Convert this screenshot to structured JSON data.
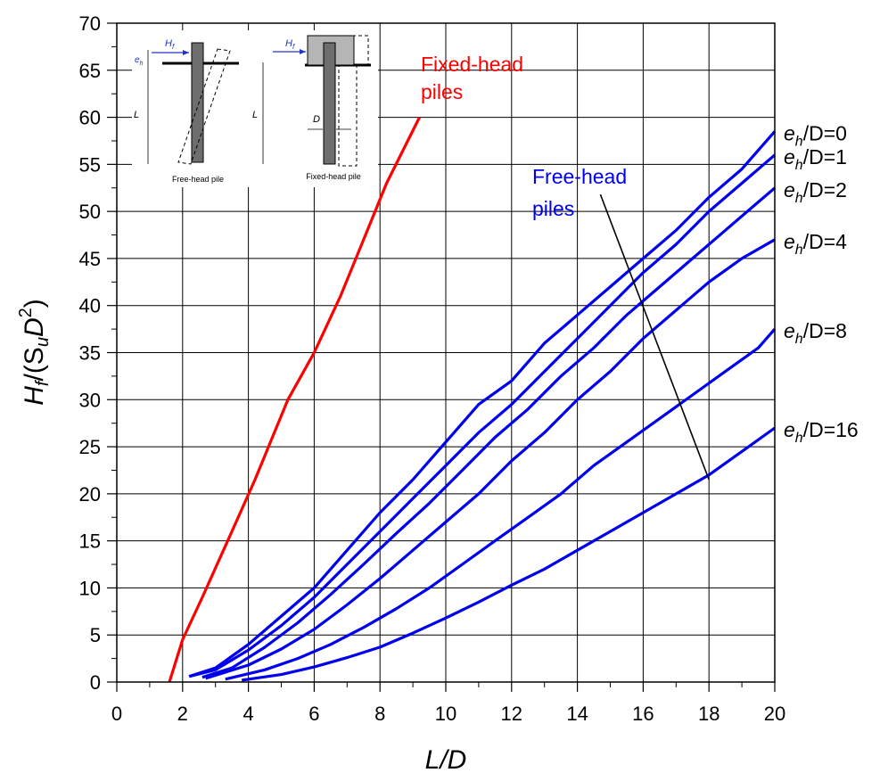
{
  "chart_data": {
    "type": "line",
    "xlabel": "L/D",
    "ylabel": {
      "main": "H",
      "sub1": "f",
      "mid": "/(S",
      "sub2": "u",
      "mid2": "D",
      "sup": "2",
      "end": ")"
    },
    "xlim": [
      0,
      20
    ],
    "ylim": [
      0,
      70
    ],
    "x_ticks": [
      "0",
      "2",
      "4",
      "6",
      "8",
      "10",
      "12",
      "14",
      "16",
      "18",
      "20"
    ],
    "y_ticks": [
      "0",
      "5",
      "10",
      "15",
      "20",
      "25",
      "30",
      "35",
      "40",
      "45",
      "50",
      "55",
      "60",
      "65",
      "70"
    ],
    "grid": true,
    "colors": {
      "fixed": "#ff0000",
      "free": "#0000ee",
      "pointer": "#000000"
    },
    "annotations": {
      "fixed_label": [
        "Fixed-head",
        "piles"
      ],
      "free_label": [
        "Free-head",
        "piles"
      ]
    },
    "fixed_series": {
      "points": [
        [
          1.6,
          0
        ],
        [
          2,
          4.5
        ],
        [
          2.6,
          9
        ],
        [
          3.5,
          16
        ],
        [
          4.2,
          21.5
        ],
        [
          5.2,
          30
        ],
        [
          6,
          35
        ],
        [
          6.8,
          41
        ],
        [
          7.5,
          47
        ],
        [
          8.2,
          53
        ],
        [
          9.2,
          60
        ]
      ]
    },
    "free_series": [
      {
        "name": {
          "e": "e",
          "sub": "h",
          "rest": "/D=0"
        },
        "points": [
          [
            2.2,
            0.6
          ],
          [
            3,
            1.5
          ],
          [
            4,
            4
          ],
          [
            5,
            7
          ],
          [
            6,
            10
          ],
          [
            7,
            14
          ],
          [
            8,
            18
          ],
          [
            9,
            21.5
          ],
          [
            10,
            25.5
          ],
          [
            11,
            29.5
          ],
          [
            12,
            32
          ],
          [
            13,
            36
          ],
          [
            14,
            39
          ],
          [
            15,
            42
          ],
          [
            16,
            45
          ],
          [
            17,
            48
          ],
          [
            18,
            51.5
          ],
          [
            19,
            54.5
          ],
          [
            20,
            58.5
          ]
        ]
      },
      {
        "name": {
          "e": "e",
          "sub": "h",
          "rest": "/D=1"
        },
        "points": [
          [
            2.2,
            0.6
          ],
          [
            3,
            1.3
          ],
          [
            4,
            3.4
          ],
          [
            5,
            6
          ],
          [
            6,
            9
          ],
          [
            7,
            12.5
          ],
          [
            8,
            16
          ],
          [
            9,
            19.5
          ],
          [
            10,
            23
          ],
          [
            11,
            26.5
          ],
          [
            12,
            29.5
          ],
          [
            13,
            33
          ],
          [
            14,
            36.5
          ],
          [
            15,
            40
          ],
          [
            16,
            43.5
          ],
          [
            17,
            46.5
          ],
          [
            18,
            50
          ],
          [
            19,
            53
          ],
          [
            20,
            56
          ]
        ]
      },
      {
        "name": {
          "e": "e",
          "sub": "h",
          "rest": "/D=2"
        },
        "points": [
          [
            2.6,
            0.5
          ],
          [
            3.5,
            1.5
          ],
          [
            4.5,
            3.7
          ],
          [
            5.5,
            6.3
          ],
          [
            6.5,
            9.3
          ],
          [
            7.5,
            12.5
          ],
          [
            8.5,
            15.8
          ],
          [
            9.5,
            19
          ],
          [
            10.5,
            22.5
          ],
          [
            11.5,
            26
          ],
          [
            12.5,
            29
          ],
          [
            13.5,
            32.5
          ],
          [
            14.5,
            35.5
          ],
          [
            15.5,
            39
          ],
          [
            16.5,
            42
          ],
          [
            17.5,
            45
          ],
          [
            18.5,
            48
          ],
          [
            19.5,
            51
          ],
          [
            20,
            52.5
          ]
        ]
      },
      {
        "name": {
          "e": "e",
          "sub": "h",
          "rest": "/D=4"
        },
        "points": [
          [
            2.7,
            0.4
          ],
          [
            4,
            1.8
          ],
          [
            5,
            3.5
          ],
          [
            6,
            5.6
          ],
          [
            7,
            8.2
          ],
          [
            8,
            11
          ],
          [
            9,
            14
          ],
          [
            10,
            17
          ],
          [
            11,
            20
          ],
          [
            12,
            23.5
          ],
          [
            13,
            26.5
          ],
          [
            14,
            30
          ],
          [
            15,
            33
          ],
          [
            16,
            36.5
          ],
          [
            17,
            39.5
          ],
          [
            18,
            42.5
          ],
          [
            19,
            45
          ],
          [
            20,
            47
          ]
        ]
      },
      {
        "name": {
          "e": "e",
          "sub": "h",
          "rest": "/D=8"
        },
        "points": [
          [
            3.3,
            0.3
          ],
          [
            4.5,
            1.3
          ],
          [
            5.5,
            2.5
          ],
          [
            6.5,
            4
          ],
          [
            7.5,
            5.8
          ],
          [
            8.5,
            7.8
          ],
          [
            9.5,
            10
          ],
          [
            10.5,
            12.5
          ],
          [
            11.5,
            15
          ],
          [
            12.5,
            17.5
          ],
          [
            13.5,
            20
          ],
          [
            14.5,
            23
          ],
          [
            15.5,
            25.5
          ],
          [
            16.5,
            28
          ],
          [
            17.5,
            30.5
          ],
          [
            18.5,
            33
          ],
          [
            19.5,
            35.5
          ],
          [
            20,
            37.5
          ]
        ]
      },
      {
        "name": {
          "e": "e",
          "sub": "h",
          "rest": "/D=16"
        },
        "points": [
          [
            3.8,
            0.2
          ],
          [
            5,
            0.8
          ],
          [
            6,
            1.6
          ],
          [
            7,
            2.6
          ],
          [
            8,
            3.7
          ],
          [
            9,
            5.2
          ],
          [
            10,
            6.8
          ],
          [
            11,
            8.5
          ],
          [
            12,
            10.3
          ],
          [
            13,
            12
          ],
          [
            14,
            14
          ],
          [
            15,
            16
          ],
          [
            16,
            18
          ],
          [
            17,
            20
          ],
          [
            18,
            22
          ],
          [
            19,
            24.5
          ],
          [
            20,
            27
          ]
        ]
      }
    ],
    "pointer_line": {
      "from": [
        14.7,
        51.8
      ],
      "to": [
        18,
        21.5
      ]
    }
  },
  "inset": {
    "left_caption": "Free-head pile",
    "right_caption": "Fixed-head pile",
    "h_label": "H",
    "h_sub": "f",
    "e_label": "e",
    "e_sub": "h",
    "l_label": "L",
    "d_label": "D"
  }
}
